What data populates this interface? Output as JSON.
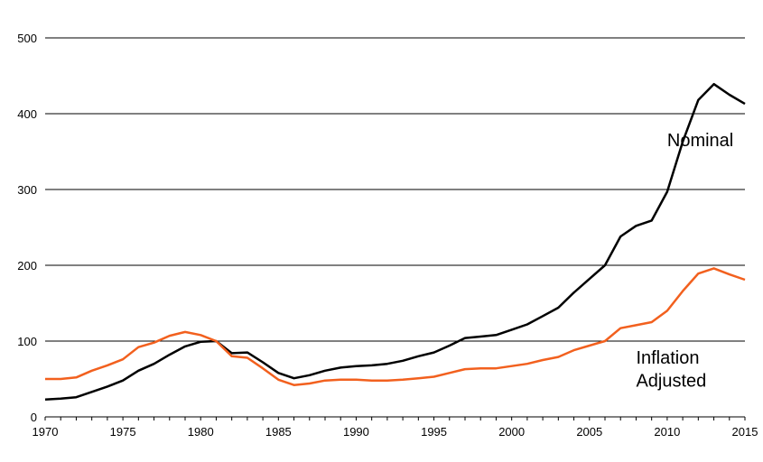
{
  "chart_data": {
    "type": "line",
    "title": "",
    "xlabel": "",
    "ylabel": "",
    "xlim": [
      1970,
      2015
    ],
    "ylim": [
      0,
      500
    ],
    "x_ticks": [
      1970,
      1975,
      1980,
      1985,
      1990,
      1995,
      2000,
      2005,
      2010,
      2015
    ],
    "y_ticks": [
      0,
      100,
      200,
      300,
      400,
      500
    ],
    "grid": "horizontal",
    "legend": "none",
    "x": [
      1970,
      1971,
      1972,
      1973,
      1974,
      1975,
      1976,
      1977,
      1978,
      1979,
      1980,
      1981,
      1982,
      1983,
      1984,
      1985,
      1986,
      1987,
      1988,
      1989,
      1990,
      1991,
      1992,
      1993,
      1994,
      1995,
      1996,
      1997,
      1998,
      1999,
      2000,
      2001,
      2002,
      2003,
      2004,
      2005,
      2006,
      2007,
      2008,
      2009,
      2010,
      2011,
      2012,
      2013,
      2014,
      2015
    ],
    "series": [
      {
        "color": "#000000",
        "values": [
          23,
          24,
          26,
          33,
          40,
          48,
          61,
          70,
          82,
          93,
          99,
          100,
          84,
          85,
          72,
          58,
          51,
          55,
          61,
          65,
          67,
          68,
          70,
          74,
          80,
          85,
          94,
          104,
          106,
          108,
          115,
          122,
          133,
          144,
          164,
          182,
          200,
          238,
          252,
          259,
          297,
          363,
          418,
          439,
          425,
          413
        ]
      },
      {
        "color": "#f2601e",
        "values": [
          50,
          50,
          52,
          61,
          68,
          76,
          92,
          98,
          107,
          112,
          108,
          100,
          80,
          78,
          64,
          49,
          42,
          44,
          48,
          49,
          49,
          48,
          48,
          49,
          51,
          53,
          58,
          63,
          64,
          64,
          67,
          70,
          75,
          79,
          88,
          94,
          100,
          117,
          121,
          125,
          140,
          166,
          189,
          196,
          188,
          181
        ]
      }
    ],
    "annotations": [
      {
        "text": "Nominal",
        "x": 2010,
        "y": 357
      },
      {
        "text": "Inflation",
        "x": 2008,
        "y": 70
      },
      {
        "text": "Adjusted",
        "x": 2008,
        "y": 40
      }
    ]
  }
}
